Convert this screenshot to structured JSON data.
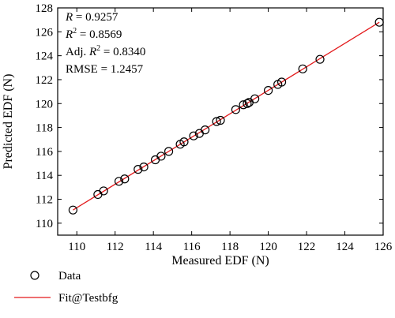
{
  "chart_data": {
    "type": "scatter",
    "xlabel": "Measured EDF (N)",
    "ylabel": "Predicted EDF (N)",
    "xlim": [
      109,
      126
    ],
    "ylim": [
      109,
      128
    ],
    "x_ticks": [
      110,
      112,
      114,
      116,
      118,
      120,
      122,
      124,
      126
    ],
    "y_ticks": [
      110,
      112,
      114,
      116,
      118,
      120,
      122,
      124,
      126,
      128
    ],
    "grid": false,
    "stats": {
      "r": "0.9257",
      "r2": "0.8569",
      "adj_r2": "0.8340",
      "rmse": "1.2457"
    },
    "series": [
      {
        "name": "Data",
        "marker": "open-circle",
        "color": "#000000",
        "points": [
          [
            109.8,
            111.1
          ],
          [
            111.1,
            112.4
          ],
          [
            111.4,
            112.7
          ],
          [
            112.2,
            113.5
          ],
          [
            112.5,
            113.7
          ],
          [
            113.2,
            114.5
          ],
          [
            113.5,
            114.7
          ],
          [
            114.1,
            115.3
          ],
          [
            114.4,
            115.6
          ],
          [
            114.8,
            116.0
          ],
          [
            115.4,
            116.6
          ],
          [
            115.6,
            116.8
          ],
          [
            116.1,
            117.3
          ],
          [
            116.4,
            117.5
          ],
          [
            116.7,
            117.8
          ],
          [
            117.3,
            118.5
          ],
          [
            117.5,
            118.6
          ],
          [
            118.3,
            119.5
          ],
          [
            118.7,
            119.9
          ],
          [
            118.9,
            120.0
          ],
          [
            119.0,
            120.1
          ],
          [
            119.3,
            120.4
          ],
          [
            120.0,
            121.1
          ],
          [
            120.5,
            121.6
          ],
          [
            120.7,
            121.8
          ],
          [
            121.8,
            122.9
          ],
          [
            122.7,
            123.7
          ],
          [
            125.8,
            126.8
          ]
        ]
      },
      {
        "name": "Fit@Testbfg",
        "type": "line",
        "color": "#e31a1c",
        "points": [
          [
            109.8,
            111.1
          ],
          [
            125.8,
            126.8
          ]
        ]
      }
    ]
  }
}
